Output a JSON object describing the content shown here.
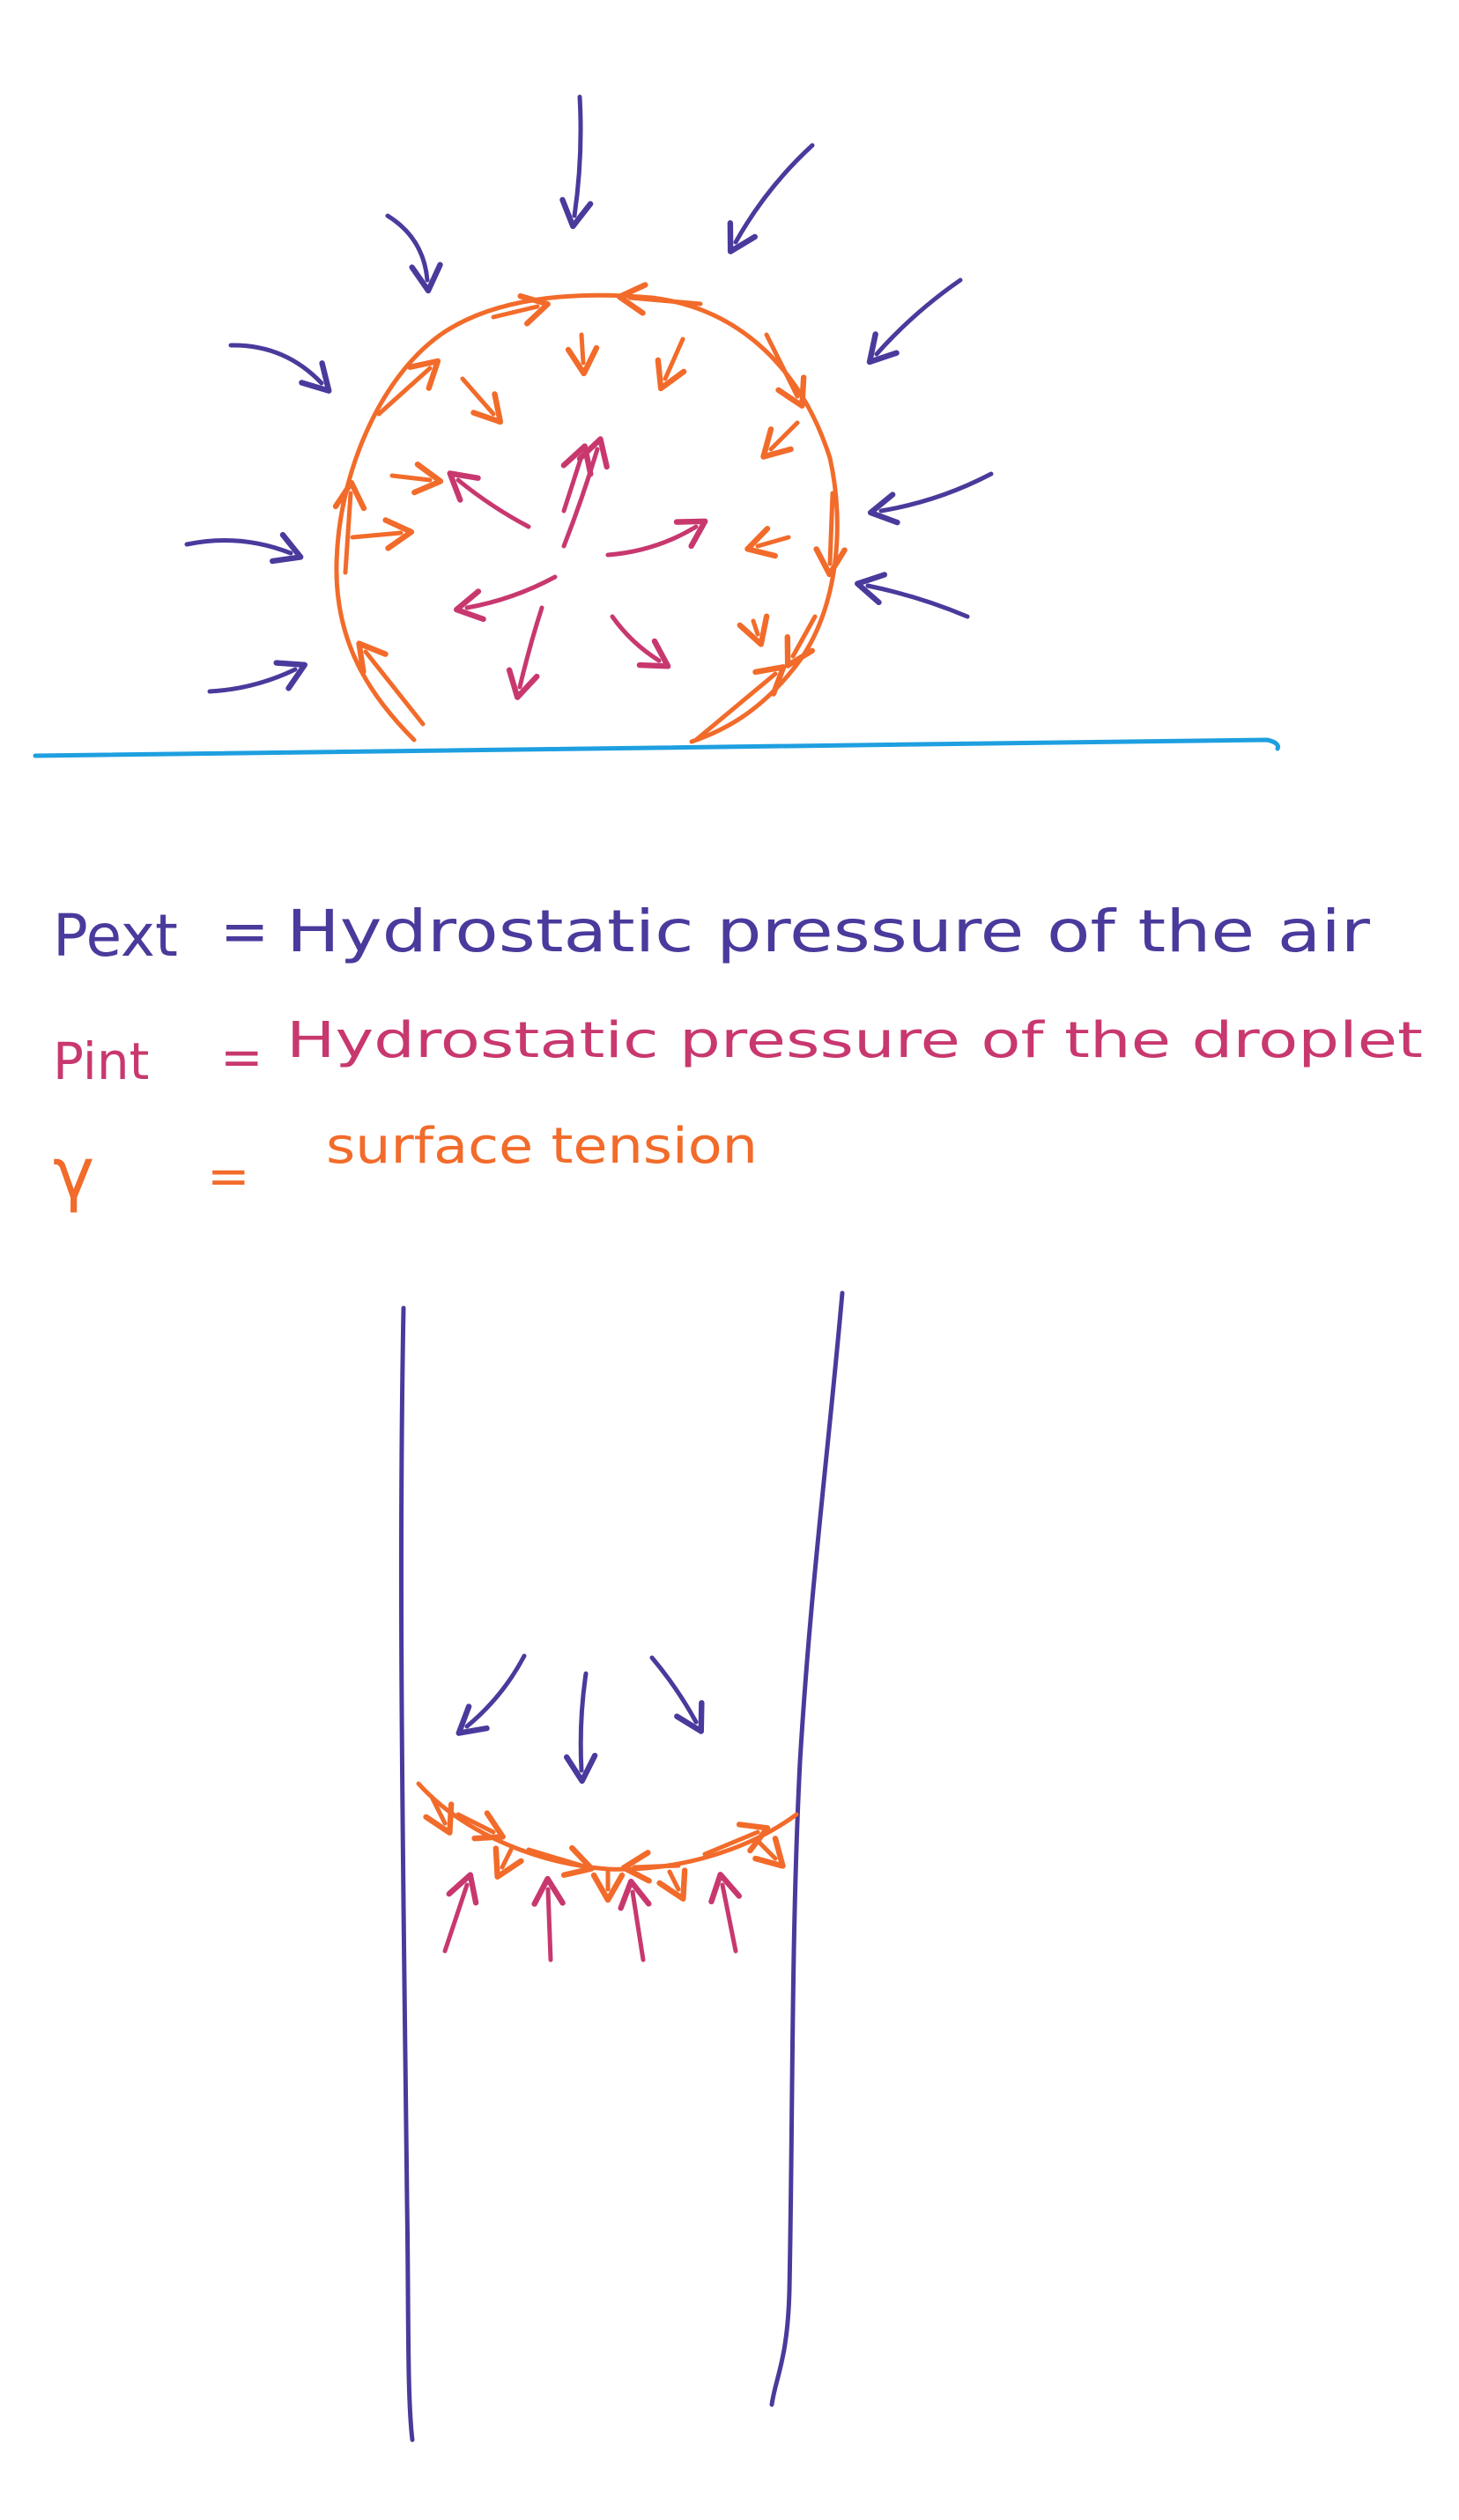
{
  "colors": {
    "external": "#4a3a9c",
    "internal": "#c8386f",
    "tension": "#f26b2a",
    "surface": "#1e9fe0"
  },
  "legend": {
    "external": {
      "symbol": "Pext",
      "eq": "=",
      "text": "Hydrostatic pressure of the air"
    },
    "internal": {
      "symbol": "Pint",
      "eq": "=",
      "text": "Hydrostatic pressure of the droplet"
    },
    "tension": {
      "symbol": "γ",
      "eq": "=",
      "text": "surface tension"
    }
  }
}
